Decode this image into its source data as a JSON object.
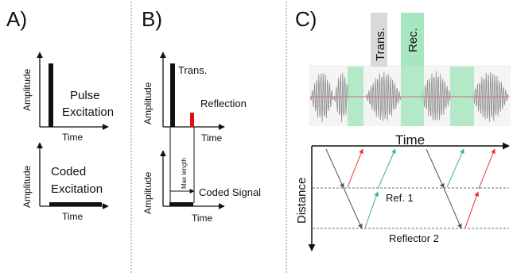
{
  "panels": {
    "a": {
      "label": "A)",
      "top_plot": {
        "ylabel": "Amplitude",
        "xlabel": "Time",
        "caption_line1": "Pulse",
        "caption_line2": "Excitation"
      },
      "bottom_plot": {
        "ylabel": "Amplitude",
        "xlabel": "Time",
        "caption_line1": "Coded",
        "caption_line2": "Excitation"
      }
    },
    "b": {
      "label": "B)",
      "top_plot": {
        "ylabel": "Amplitude",
        "xlabel": "Time",
        "trans_label": "Trans.",
        "reflection_label": "Reflection"
      },
      "bottom_plot": {
        "ylabel": "Amplitude",
        "xlabel": "Time",
        "max_length_label": "Max length",
        "coded_signal_label": "Coded Signal"
      }
    },
    "c": {
      "label": "C)",
      "trans_window_label": "Trans.",
      "rec_window_label": "Rec.",
      "time_label": "Time",
      "distance_label": "Distance",
      "reflector1_label": "Ref. 1",
      "reflector2_label": "Reflector 2"
    }
  },
  "colors": {
    "trans_window": "#d9d9d9",
    "rec_window": "#a8e6bf",
    "reflection_pulse": "#e01010",
    "outgoing_arrow": "#e83030",
    "return_arrow": "#3cb878",
    "incident_arrow": "#555555",
    "waveform": "#8c8c8c"
  }
}
